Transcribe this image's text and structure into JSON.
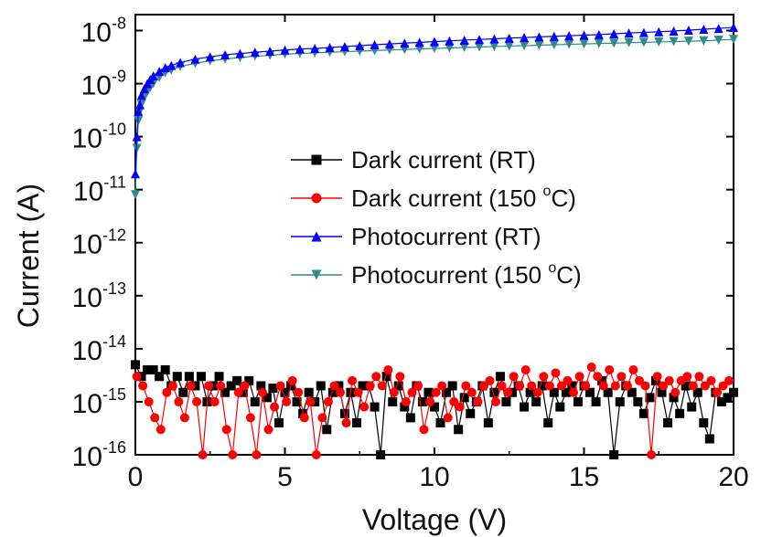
{
  "chart_data": {
    "type": "scatter",
    "title": "",
    "xlabel": "Voltage (V)",
    "ylabel": "Current (A)",
    "xlim": [
      0,
      20
    ],
    "ylim": [
      1e-16,
      2e-08
    ],
    "yscale": "log",
    "x_ticks": [
      "0",
      "5",
      "10",
      "15",
      "20"
    ],
    "y_ticks": [
      {
        "base": "10",
        "exp": "-16"
      },
      {
        "base": "10",
        "exp": "-15"
      },
      {
        "base": "10",
        "exp": "-14"
      },
      {
        "base": "10",
        "exp": "-13"
      },
      {
        "base": "10",
        "exp": "-12"
      },
      {
        "base": "10",
        "exp": "-11"
      },
      {
        "base": "10",
        "exp": "-10"
      },
      {
        "base": "10",
        "exp": "-9"
      },
      {
        "base": "10",
        "exp": "-8"
      }
    ],
    "grid": false,
    "legend_position": "center-right",
    "series": [
      {
        "name": "Dark current (RT)",
        "color": "#000000",
        "marker": "square",
        "x": [
          0,
          0.2,
          0.4,
          0.6,
          0.8,
          1,
          1.2,
          1.4,
          1.6,
          1.8,
          2,
          2.2,
          2.4,
          2.6,
          2.8,
          3,
          3.2,
          3.4,
          3.6,
          3.8,
          4,
          4.2,
          4.4,
          4.6,
          4.8,
          5,
          5.2,
          5.4,
          5.6,
          5.8,
          6,
          6.2,
          6.4,
          6.6,
          6.8,
          7,
          7.2,
          7.4,
          7.6,
          7.8,
          8,
          8.2,
          8.4,
          8.6,
          8.8,
          9,
          9.2,
          9.4,
          9.6,
          9.8,
          10,
          10.2,
          10.4,
          10.6,
          10.8,
          11,
          11.2,
          11.4,
          11.6,
          11.8,
          12,
          12.2,
          12.4,
          12.6,
          12.8,
          13,
          13.2,
          13.4,
          13.6,
          13.8,
          14,
          14.2,
          14.4,
          14.6,
          14.8,
          15,
          15.2,
          15.4,
          15.6,
          15.8,
          16,
          16.2,
          16.4,
          16.6,
          16.8,
          17,
          17.2,
          17.4,
          17.6,
          17.8,
          18,
          18.2,
          18.4,
          18.6,
          18.8,
          19,
          19.2,
          19.4,
          19.6,
          19.8,
          20
        ],
        "y": [
          5e-15,
          3e-15,
          4e-15,
          4e-15,
          3e-15,
          4e-15,
          2e-15,
          3e-15,
          1.5e-15,
          3e-15,
          2e-15,
          3e-15,
          1e-15,
          2e-15,
          3e-15,
          1.5e-15,
          2e-15,
          2.5e-15,
          1.5e-15,
          2.5e-15,
          1e-15,
          2e-15,
          1.2e-15,
          1.8e-15,
          4e-16,
          1.5e-15,
          2e-15,
          1e-15,
          6e-16,
          1.5e-15,
          1e-15,
          2e-15,
          3e-16,
          1.5e-15,
          2e-15,
          6e-16,
          1.5e-15,
          4e-16,
          2e-15,
          2e-15,
          8e-16,
          1e-16,
          3e-15,
          1e-15,
          2e-15,
          8e-16,
          5e-16,
          2e-15,
          1e-15,
          1.5e-15,
          8e-16,
          4e-16,
          1.5e-15,
          2e-15,
          3e-16,
          1.2e-15,
          6e-16,
          1e-15,
          2e-15,
          4e-16,
          1.5e-15,
          3e-15,
          1e-15,
          1.5e-15,
          2e-15,
          8e-16,
          1.5e-15,
          1e-15,
          2e-15,
          4e-16,
          1.5e-15,
          8e-16,
          1.5e-15,
          2e-15,
          1e-15,
          2e-15,
          1.5e-15,
          1e-15,
          2.5e-15,
          1.5e-15,
          1e-16,
          1e-15,
          2e-15,
          1.5e-15,
          1e-15,
          6e-16,
          1.2e-15,
          2.5e-15,
          1.5e-15,
          4e-16,
          1.2e-15,
          6e-16,
          2e-15,
          8e-16,
          1.5e-15,
          4e-16,
          2e-16,
          1.5e-15,
          1e-15,
          1.2e-15,
          1.5e-15
        ],
        "y_note": ""
      },
      {
        "name": "Dark current (150 °C)",
        "color": "#ff0000",
        "marker": "circle",
        "x": [
          0.05,
          0.25,
          0.45,
          0.65,
          0.85,
          1.05,
          1.25,
          1.45,
          1.65,
          1.85,
          2.05,
          2.25,
          2.45,
          2.65,
          2.85,
          3.05,
          3.25,
          3.45,
          3.65,
          3.85,
          4.05,
          4.25,
          4.45,
          4.65,
          4.85,
          5.05,
          5.25,
          5.45,
          5.65,
          5.85,
          6.05,
          6.25,
          6.45,
          6.65,
          6.85,
          7.05,
          7.25,
          7.45,
          7.65,
          7.85,
          8.05,
          8.25,
          8.45,
          8.65,
          8.85,
          9.05,
          9.25,
          9.45,
          9.65,
          9.85,
          10.05,
          10.25,
          10.45,
          10.65,
          10.85,
          11.05,
          11.25,
          11.45,
          11.65,
          11.85,
          12.05,
          12.25,
          12.45,
          12.65,
          12.85,
          13.05,
          13.25,
          13.45,
          13.65,
          13.85,
          14.05,
          14.25,
          14.45,
          14.65,
          14.85,
          15.05,
          15.25,
          15.45,
          15.65,
          15.85,
          16.05,
          16.25,
          16.45,
          16.65,
          16.85,
          17.05,
          17.25,
          17.45,
          17.65,
          17.85,
          18.05,
          18.25,
          18.45,
          18.65,
          18.85,
          19.05,
          19.25,
          19.45,
          19.65,
          19.85
        ],
        "y": [
          3e-15,
          2e-15,
          1e-15,
          5e-16,
          3e-16,
          1.5e-15,
          2e-15,
          1e-15,
          5e-16,
          2e-15,
          1e-15,
          1e-16,
          2e-15,
          1e-15,
          2e-15,
          3e-16,
          1e-16,
          1.5e-15,
          2e-15,
          5e-16,
          1e-16,
          1.5e-15,
          3e-16,
          8e-16,
          2e-15,
          1e-15,
          2.5e-15,
          1.5e-15,
          5e-16,
          1e-15,
          1e-16,
          5e-16,
          1e-15,
          2e-15,
          1.5e-15,
          4e-16,
          2.5e-15,
          1.5e-15,
          8e-16,
          2e-15,
          3e-15,
          2e-15,
          4e-15,
          1.5e-15,
          3e-15,
          1e-15,
          1.5e-15,
          2e-15,
          3e-16,
          1e-15,
          1.5e-15,
          2e-15,
          5e-16,
          1e-15,
          8e-16,
          2e-15,
          1.5e-15,
          1e-15,
          2e-15,
          2.5e-15,
          1e-15,
          2e-15,
          1.5e-15,
          3e-15,
          2e-15,
          4e-15,
          2e-15,
          1.5e-15,
          3e-15,
          2e-15,
          3.5e-15,
          2e-15,
          2.5e-15,
          1.5e-15,
          3e-15,
          2e-15,
          4.5e-15,
          3e-15,
          2e-15,
          4e-15,
          2e-15,
          3e-15,
          2e-15,
          4e-15,
          2.5e-15,
          2e-15,
          1e-16,
          3e-15,
          2e-15,
          2.5e-15,
          1.5e-15,
          2.5e-15,
          3e-15,
          2e-15,
          3e-15,
          2e-15,
          2.5e-15,
          1.5e-15,
          2e-15,
          2.5e-15
        ]
      },
      {
        "name": "Photocurrent (RT)",
        "color": "#0000ff",
        "marker": "triangle-up",
        "x": [
          0,
          0.05,
          0.1,
          0.15,
          0.2,
          0.3,
          0.4,
          0.5,
          0.6,
          0.8,
          1,
          1.2,
          1.5,
          2,
          2.5,
          3,
          3.5,
          4,
          4.5,
          5,
          5.5,
          6,
          6.5,
          7,
          7.5,
          8,
          8.5,
          9,
          9.5,
          10,
          10.5,
          11,
          11.5,
          12,
          12.5,
          13,
          13.5,
          14,
          14.5,
          15,
          15.5,
          16,
          16.5,
          17,
          17.5,
          18,
          18.5,
          19,
          19.5,
          20
        ],
        "y": [
          2e-11,
          1e-10,
          3e-10,
          4e-10,
          6e-10,
          8e-10,
          1e-09,
          1.2e-09,
          1.4e-09,
          1.7e-09,
          2e-09,
          2.2e-09,
          2.5e-09,
          2.9e-09,
          3.2e-09,
          3.5e-09,
          3.7e-09,
          3.9e-09,
          4.1e-09,
          4.3e-09,
          4.5e-09,
          4.6e-09,
          4.8e-09,
          5e-09,
          5.2e-09,
          5.4e-09,
          5.6e-09,
          5.8e-09,
          6e-09,
          6.2e-09,
          6.4e-09,
          6.6e-09,
          6.8e-09,
          7e-09,
          7.2e-09,
          7.4e-09,
          7.6e-09,
          7.8e-09,
          8e-09,
          8.2e-09,
          8.4e-09,
          8.7e-09,
          9e-09,
          9.2e-09,
          9.5e-09,
          9.8e-09,
          1.02e-08,
          1.06e-08,
          1.1e-08,
          1.15e-08
        ]
      },
      {
        "name": "Photocurrent (150 °C)",
        "color": "#2e8b8b",
        "marker": "triangle-down",
        "x": [
          0,
          0.05,
          0.1,
          0.15,
          0.2,
          0.3,
          0.4,
          0.5,
          0.6,
          0.8,
          1,
          1.2,
          1.5,
          2,
          2.5,
          3,
          3.5,
          4,
          4.5,
          5,
          5.5,
          6,
          6.5,
          7,
          7.5,
          8,
          8.5,
          9,
          9.5,
          10,
          10.5,
          11,
          11.5,
          12,
          12.5,
          13,
          13.5,
          14,
          14.5,
          15,
          15.5,
          16,
          16.5,
          17,
          17.5,
          18,
          18.5,
          19,
          19.5,
          20
        ],
        "y": [
          8e-12,
          6e-11,
          2e-10,
          3e-10,
          4e-10,
          5.5e-10,
          7e-10,
          8.5e-10,
          1e-09,
          1.3e-09,
          1.6e-09,
          1.8e-09,
          2.1e-09,
          2.4e-09,
          2.7e-09,
          2.9e-09,
          3.1e-09,
          3.3e-09,
          3.4e-09,
          3.6e-09,
          3.7e-09,
          3.8e-09,
          3.9e-09,
          4e-09,
          4.1e-09,
          4.2e-09,
          4.3e-09,
          4.4e-09,
          4.5e-09,
          4.6e-09,
          4.7e-09,
          4.8e-09,
          4.9e-09,
          5e-09,
          5.1e-09,
          5.2e-09,
          5.3e-09,
          5.4e-09,
          5.5e-09,
          5.6e-09,
          5.7e-09,
          5.8e-09,
          5.9e-09,
          6e-09,
          6.1e-09,
          6.2e-09,
          6.3e-09,
          6.4e-09,
          6.6e-09,
          6.8e-09
        ]
      }
    ],
    "legend": [
      {
        "text": "Dark current (RT)",
        "sup": ""
      },
      {
        "text": "Dark current (150 ",
        "sup": "o",
        "tail": "C)"
      },
      {
        "text": "Photocurrent (RT)",
        "sup": ""
      },
      {
        "text": "Photocurrent (150 ",
        "sup": "o",
        "tail": "C)"
      }
    ]
  }
}
